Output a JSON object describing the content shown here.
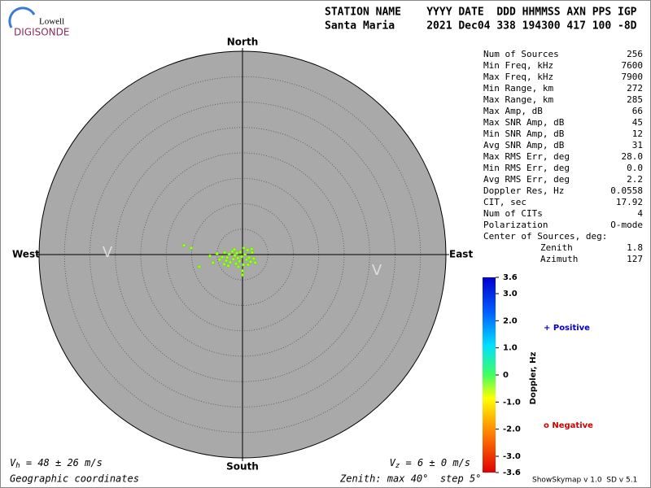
{
  "logo": {
    "top": "Lowell",
    "bottom": "DIGISONDE"
  },
  "header": {
    "labels": "STATION NAME    YYYY DATE  DDD HHMMSS AXN PPS IGP",
    "values": "Santa Maria     2021 Dec04 338 194300 417 100 -8D"
  },
  "stats": [
    [
      "Num of Sources",
      "256"
    ],
    [
      "Min Freq, kHz",
      "7600"
    ],
    [
      "Max Freq, kHz",
      "7900"
    ],
    [
      "Min Range, km",
      "272"
    ],
    [
      "Max Range, km",
      "285"
    ],
    [
      "Max Amp, dB",
      "66"
    ],
    [
      "Max SNR Amp, dB",
      "45"
    ],
    [
      "Min SNR Amp, dB",
      "12"
    ],
    [
      "Avg SNR Amp, dB",
      "31"
    ],
    [
      "Max RMS Err, deg",
      "28.0"
    ],
    [
      "Min RMS Err, deg",
      "0.0"
    ],
    [
      "Avg RMS Err, deg",
      "2.2"
    ],
    [
      "Doppler Res, Hz",
      "0.0558"
    ],
    [
      "CIT, sec",
      "17.92"
    ],
    [
      "Num of CITs",
      "4"
    ],
    [
      "Polarization",
      "O-mode"
    ]
  ],
  "center": {
    "title": "Center of Sources, deg:",
    "rows": [
      [
        "Zenith",
        "1.8"
      ],
      [
        "Azimuth",
        "127"
      ]
    ]
  },
  "skymap": {
    "directions": {
      "north": "North",
      "south": "South",
      "west": "West",
      "east": "East"
    },
    "markers": [
      "V",
      "V"
    ],
    "zlim": [
      0,
      40
    ],
    "rings": [
      5,
      10,
      15,
      20,
      25,
      30,
      35,
      40
    ],
    "background": "#a9a9a9",
    "point_color": "#9cff2e",
    "points": {
      "east": [
        -11.5,
        -10.1,
        -8.5,
        -6.4,
        -5.8,
        -5.0,
        -4.5,
        -4.0,
        -3.5,
        -3.2,
        -3.0,
        -2.6,
        -2.4,
        -2.0,
        -1.8,
        -1.5,
        -1.3,
        -1.1,
        -0.9,
        -0.6,
        -0.4,
        -0.2,
        0.0,
        0.2,
        0.5,
        0.8,
        1.0,
        1.3,
        1.6,
        1.9,
        2.2,
        2.5,
        -2.8,
        -1.6,
        -0.8,
        0.3,
        1.1,
        -3.6,
        0.0,
        1.8
      ],
      "north": [
        1.8,
        1.3,
        -2.4,
        -0.3,
        -1.6,
        0.2,
        -1.0,
        -0.5,
        0.4,
        -1.2,
        -0.6,
        0.1,
        -1.5,
        0.6,
        -0.9,
        -0.2,
        -1.8,
        0.3,
        -0.7,
        -1.3,
        0.5,
        -0.4,
        -4.0,
        -2.0,
        0.0,
        -1.0,
        0.9,
        -0.6,
        -1.4,
        0.4,
        -0.8,
        -1.6,
        -2.2,
        1.0,
        -2.4,
        1.3,
        -2.0,
        -1.9,
        -3.2,
        1.1
      ]
    }
  },
  "colorbar": {
    "label": "Doppler, Hz",
    "lim": [
      -3.6,
      3.6
    ],
    "ticks": [
      3.6,
      {
        "value": 3.0,
        "label": "3.0"
      },
      {
        "value": 2.0,
        "label": "2.0"
      },
      {
        "value": 1.0,
        "label": "1.0"
      },
      0,
      {
        "value": -1.0,
        "label": "-1.0"
      },
      {
        "value": -2.0,
        "label": "-2.0"
      },
      {
        "value": -3.0,
        "label": "-3.0"
      },
      -3.6
    ]
  },
  "legend": {
    "positive": "+ Positive",
    "negative": "o Negative"
  },
  "footer": {
    "vh": {
      "symbol": "V",
      "sub": "h",
      "text": " = 48 ± 26 m/s"
    },
    "vz": {
      "symbol": "V",
      "sub": "z",
      "text": " = 6 ± 0 m/s"
    },
    "coords": "Geographic coordinates",
    "zenith": "Zenith: max 40°  step 5°",
    "version": "ShowSkymap v 1.0  SD v 5.1"
  }
}
